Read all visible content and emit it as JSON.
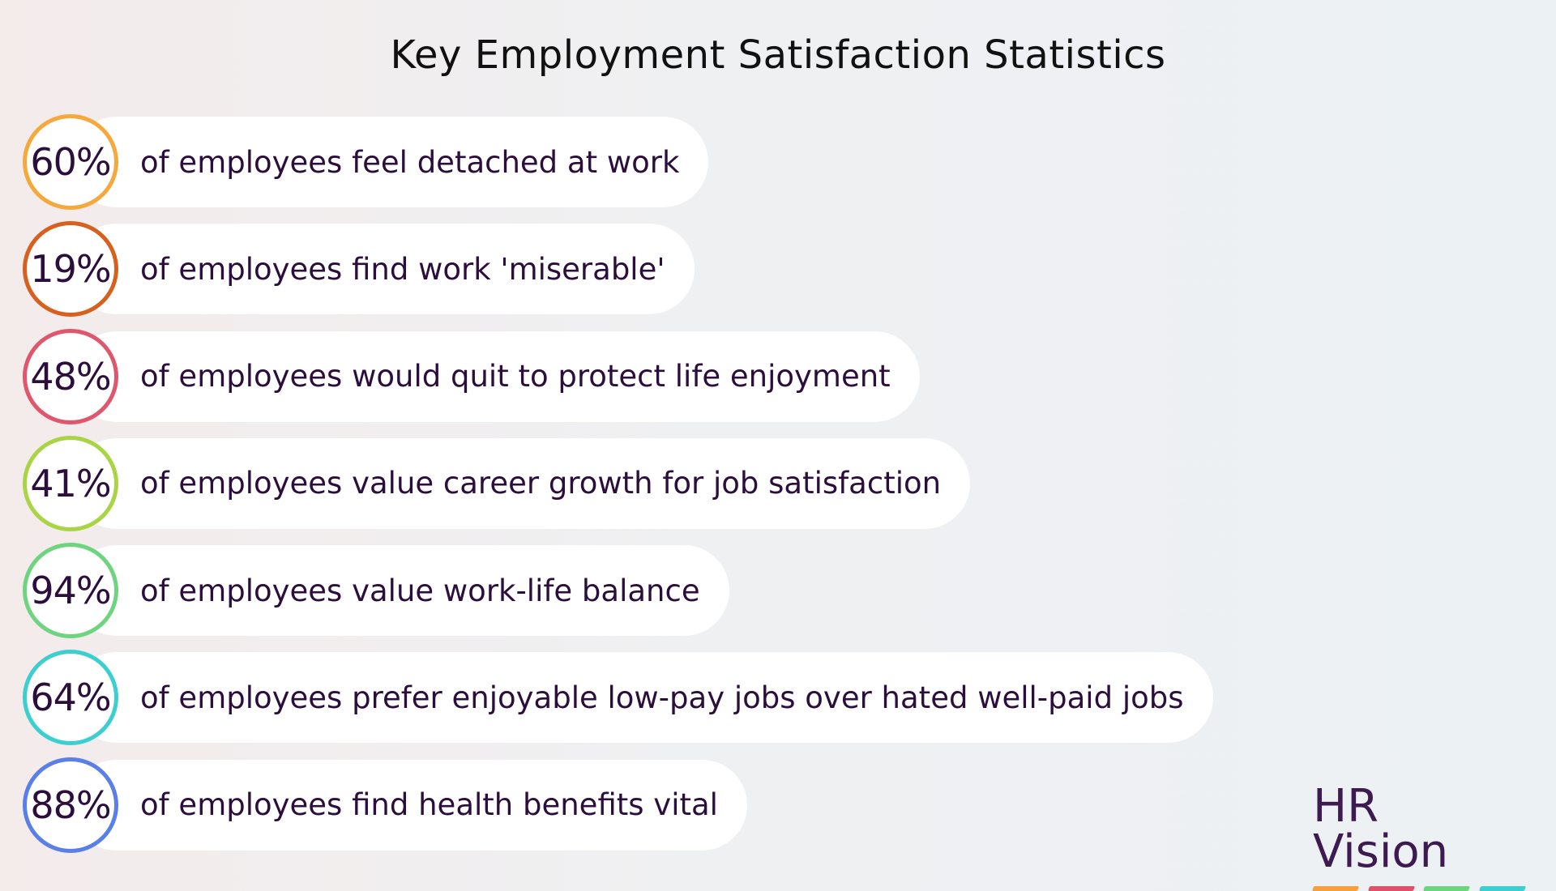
{
  "header": {
    "title": "Key Employment Satisfaction Statistics"
  },
  "stats": [
    {
      "value": "60%",
      "text": "of employees feel detached at work",
      "color": "#f5a83c"
    },
    {
      "value": "19%",
      "text": "of employees find work 'miserable'",
      "color": "#d8601e"
    },
    {
      "value": "48%",
      "text": "of employees would quit to protect life enjoyment",
      "color": "#e0566c"
    },
    {
      "value": "41%",
      "text": "of employees value career growth for job satisfaction",
      "color": "#a9d545"
    },
    {
      "value": "94%",
      "text": "of employees value work-life balance",
      "color": "#6fd480"
    },
    {
      "value": "64%",
      "text": "of employees prefer enjoyable low-pay jobs over hated well-paid jobs",
      "color": "#3ccfd0"
    },
    {
      "value": "88%",
      "text": "of employees find health benefits vital",
      "color": "#5b7fe8"
    }
  ],
  "logo": {
    "text": "HR Vision"
  }
}
